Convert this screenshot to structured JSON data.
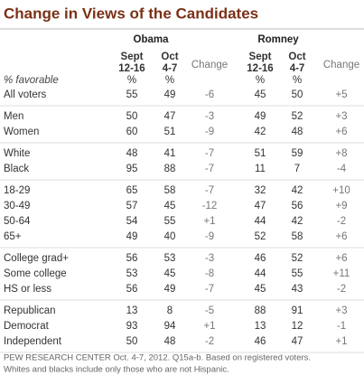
{
  "title": "Change in Views of the Candidates",
  "groups": [
    "Obama",
    "Romney"
  ],
  "columns": [
    [
      "Sept",
      "12-16"
    ],
    [
      "Oct",
      "4-7"
    ],
    [
      "Change"
    ],
    [
      "Sept",
      "12-16"
    ],
    [
      "Oct",
      "4-7"
    ],
    [
      "Change"
    ]
  ],
  "units_row": {
    "label": "% favorable",
    "cells": [
      "%",
      "%",
      "%",
      "%"
    ]
  },
  "sections": [
    [
      [
        "All voters",
        "55",
        "49",
        "-6",
        "45",
        "50",
        "+5"
      ]
    ],
    [
      [
        "Men",
        "50",
        "47",
        "-3",
        "49",
        "52",
        "+3"
      ],
      [
        "Women",
        "60",
        "51",
        "-9",
        "42",
        "48",
        "+6"
      ]
    ],
    [
      [
        "White",
        "48",
        "41",
        "-7",
        "51",
        "59",
        "+8"
      ],
      [
        "Black",
        "95",
        "88",
        "-7",
        "11",
        "7",
        "-4"
      ]
    ],
    [
      [
        "18-29",
        "65",
        "58",
        "-7",
        "32",
        "42",
        "+10"
      ],
      [
        "30-49",
        "57",
        "45",
        "-12",
        "47",
        "56",
        "+9"
      ],
      [
        "50-64",
        "54",
        "55",
        "+1",
        "44",
        "42",
        "-2"
      ],
      [
        "65+",
        "49",
        "40",
        "-9",
        "52",
        "58",
        "+6"
      ]
    ],
    [
      [
        "College grad+",
        "56",
        "53",
        "-3",
        "46",
        "52",
        "+6"
      ],
      [
        "Some college",
        "53",
        "45",
        "-8",
        "44",
        "55",
        "+11"
      ],
      [
        "HS or less",
        "56",
        "49",
        "-7",
        "45",
        "43",
        "-2"
      ]
    ],
    [
      [
        "Republican",
        "13",
        "8",
        "-5",
        "88",
        "91",
        "+3"
      ],
      [
        "Democrat",
        "93",
        "94",
        "+1",
        "13",
        "12",
        "-1"
      ],
      [
        "Independent",
        "50",
        "48",
        "-2",
        "46",
        "47",
        "+1"
      ]
    ]
  ],
  "footer": [
    "PEW RESEARCH CENTER Oct. 4-7, 2012. Q15a-b. Based on registered voters.",
    "Whites and blacks include only those who are not Hispanic."
  ]
}
